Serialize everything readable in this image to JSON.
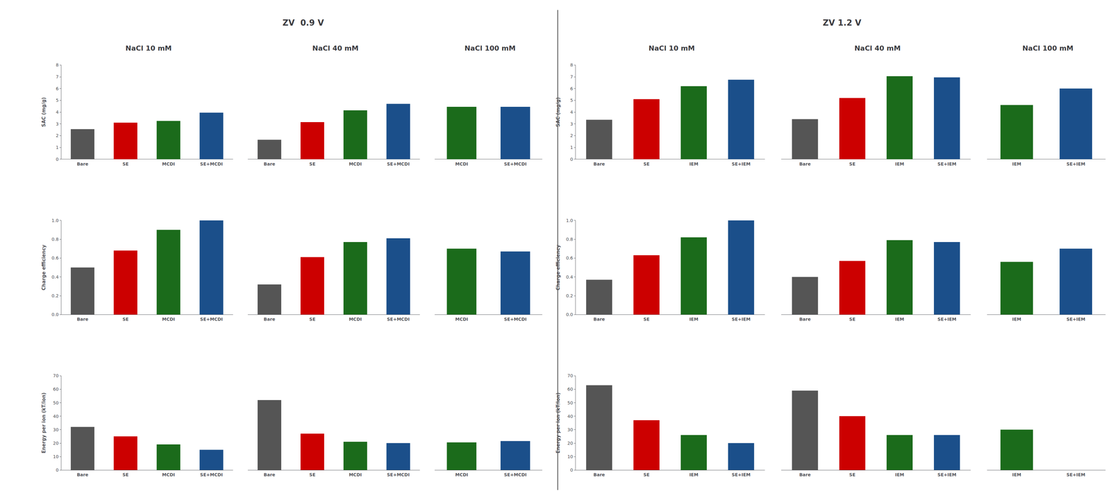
{
  "chart_data": [
    {
      "type": "bar",
      "title": "ZV  0.9 V",
      "subtitle": "NaCl 10 mM",
      "ylabel": "SAC (mg/g)",
      "categories": [
        "Bare",
        "SE",
        "MCDI",
        "SE+MCDI"
      ],
      "values": [
        2.55,
        3.1,
        3.25,
        3.95
      ],
      "colors": [
        "#555555",
        "#CC0000",
        "#1B6B1B",
        "#1B4F8A"
      ],
      "ylim": [
        0,
        8
      ],
      "yticks": [
        0,
        1,
        2,
        3,
        4,
        5,
        6,
        7,
        8
      ],
      "grid": false
    },
    {
      "type": "bar",
      "subtitle": "NaCl 40 mM",
      "categories": [
        "Bare",
        "SE",
        "MCDI",
        "SE+MCDI"
      ],
      "values": [
        1.65,
        3.15,
        4.15,
        4.7
      ],
      "colors": [
        "#555555",
        "#CC0000",
        "#1B6B1B",
        "#1B4F8A"
      ],
      "ylim": [
        0,
        8
      ],
      "yticks": [
        0,
        1,
        2,
        3,
        4,
        5,
        6,
        7,
        8
      ],
      "grid": false,
      "tick_labels": "x"
    },
    {
      "type": "bar",
      "subtitle": "NaCl 100 mM",
      "categories": [
        "MCDI",
        "SE+MCDI"
      ],
      "values": [
        4.45,
        4.45
      ],
      "colors": [
        "#1B6B1B",
        "#1B4F8A"
      ],
      "ylim": [
        0,
        8
      ],
      "yticks": [
        0,
        1,
        2,
        3,
        4,
        5,
        6,
        7,
        8
      ],
      "grid": false,
      "tick_labels": "x"
    },
    {
      "type": "bar",
      "ylabel": "Charge efficiency",
      "categories": [
        "Bare",
        "SE",
        "MCDI",
        "SE+MCDI"
      ],
      "values": [
        0.5,
        0.68,
        0.9,
        1.0
      ],
      "colors": [
        "#555555",
        "#CC0000",
        "#1B6B1B",
        "#1B4F8A"
      ],
      "ylim": [
        0,
        1.0
      ],
      "yticks": [
        {
          "value": 0.0,
          "label": "0.0"
        },
        0.2,
        0.4,
        0.6,
        0.8,
        {
          "value": 1.0,
          "label": "1.0"
        }
      ],
      "grid": false
    },
    {
      "type": "bar",
      "categories": [
        "Bare",
        "SE",
        "MCDI",
        "SE+MCDI"
      ],
      "values": [
        0.32,
        0.61,
        0.77,
        0.81
      ],
      "colors": [
        "#555555",
        "#CC0000",
        "#1B6B1B",
        "#1B4F8A"
      ],
      "ylim": [
        0,
        1.0
      ],
      "yticks": [
        {
          "value": 0.0,
          "label": "0.0"
        },
        0.2,
        0.4,
        0.6,
        0.8,
        {
          "value": 1.0,
          "label": "1.0"
        }
      ],
      "grid": false,
      "tick_labels": "x"
    },
    {
      "type": "bar",
      "categories": [
        "MCDI",
        "SE+MCDI"
      ],
      "values": [
        0.7,
        0.67
      ],
      "colors": [
        "#1B6B1B",
        "#1B4F8A"
      ],
      "ylim": [
        0,
        1.0
      ],
      "yticks": [
        {
          "value": 0.0,
          "label": "0.0"
        },
        0.2,
        0.4,
        0.6,
        0.8,
        {
          "value": 1.0,
          "label": "1.0"
        }
      ],
      "grid": false,
      "tick_labels": "x"
    },
    {
      "type": "bar",
      "ylabel": "Energy per ion (kT/ion)",
      "categories": [
        "Bare",
        "SE",
        "MCDI",
        "SE+MCDI"
      ],
      "values": [
        32,
        25,
        19,
        15
      ],
      "colors": [
        "#555555",
        "#CC0000",
        "#1B6B1B",
        "#1B4F8A"
      ],
      "ylim": [
        0,
        70
      ],
      "yticks": [
        0,
        10,
        20,
        30,
        40,
        50,
        60,
        70
      ],
      "grid": false
    },
    {
      "type": "bar",
      "categories": [
        "Bare",
        "SE",
        "MCDI",
        "SE+MCDI"
      ],
      "values": [
        52,
        27,
        21,
        20
      ],
      "colors": [
        "#555555",
        "#CC0000",
        "#1B6B1B",
        "#1B4F8A"
      ],
      "ylim": [
        0,
        70
      ],
      "yticks": [
        0,
        10,
        20,
        30,
        40,
        50,
        60,
        70
      ],
      "grid": false,
      "tick_labels": "x"
    },
    {
      "type": "bar",
      "categories": [
        "MCDI",
        "SE+MCDI"
      ],
      "values": [
        20.5,
        21.5
      ],
      "colors": [
        "#1B6B1B",
        "#1B4F8A"
      ],
      "ylim": [
        0,
        70
      ],
      "yticks": [
        0,
        10,
        20,
        30,
        40,
        50,
        60,
        70
      ],
      "grid": false,
      "tick_labels": "x"
    },
    {
      "type": "bar",
      "title": "ZV 1.2 V",
      "subtitle": "NaCl 10 mM",
      "ylabel": "SAC (mg/g)",
      "categories": [
        "Bare",
        "SE",
        "IEM",
        "SE+IEM"
      ],
      "values": [
        3.35,
        5.1,
        6.2,
        6.75
      ],
      "colors": [
        "#555555",
        "#CC0000",
        "#1B6B1B",
        "#1B4F8A"
      ],
      "ylim": [
        0,
        8
      ],
      "yticks": [
        0,
        1,
        2,
        3,
        4,
        5,
        6,
        7,
        8
      ],
      "grid": false
    },
    {
      "type": "bar",
      "subtitle": "NaCl 40 mM",
      "categories": [
        "Bare",
        "SE",
        "IEM",
        "SE+IEM"
      ],
      "values": [
        3.4,
        5.2,
        7.05,
        6.95
      ],
      "colors": [
        "#555555",
        "#CC0000",
        "#1B6B1B",
        "#1B4F8A"
      ],
      "ylim": [
        0,
        8
      ],
      "yticks": [
        0,
        1,
        2,
        3,
        4,
        5,
        6,
        7,
        8
      ],
      "grid": false,
      "tick_labels": "x"
    },
    {
      "type": "bar",
      "subtitle": "NaCl 100 mM",
      "categories": [
        "IEM",
        "SE+IEM"
      ],
      "values": [
        4.6,
        6.0
      ],
      "colors": [
        "#1B6B1B",
        "#1B4F8A"
      ],
      "ylim": [
        0,
        8
      ],
      "yticks": [
        0,
        1,
        2,
        3,
        4,
        5,
        6,
        7,
        8
      ],
      "grid": false,
      "tick_labels": "x"
    },
    {
      "type": "bar",
      "ylabel": "Charge efficiency",
      "categories": [
        "Bare",
        "SE",
        "IEM",
        "SE+IEM"
      ],
      "values": [
        0.37,
        0.63,
        0.82,
        1.0
      ],
      "colors": [
        "#555555",
        "#CC0000",
        "#1B6B1B",
        "#1B4F8A"
      ],
      "ylim": [
        0,
        1.0
      ],
      "yticks": [
        {
          "value": 0.0,
          "label": "0.0"
        },
        0.2,
        0.4,
        0.6,
        0.8,
        {
          "value": 1.0,
          "label": "1.0"
        }
      ],
      "grid": false
    },
    {
      "type": "bar",
      "categories": [
        "Bare",
        "SE",
        "IEM",
        "SE+IEM"
      ],
      "values": [
        0.4,
        0.57,
        0.79,
        0.77
      ],
      "colors": [
        "#555555",
        "#CC0000",
        "#1B6B1B",
        "#1B4F8A"
      ],
      "ylim": [
        0,
        1.0
      ],
      "yticks": [
        {
          "value": 0.0,
          "label": "0.0"
        },
        0.2,
        0.4,
        0.6,
        0.8,
        {
          "value": 1.0,
          "label": "1.0"
        }
      ],
      "grid": false,
      "tick_labels": "x"
    },
    {
      "type": "bar",
      "categories": [
        "IEM",
        "SE+IEM"
      ],
      "values": [
        0.56,
        0.7
      ],
      "colors": [
        "#1B6B1B",
        "#1B4F8A"
      ],
      "ylim": [
        0,
        1.0
      ],
      "yticks": [
        {
          "value": 0.0,
          "label": "0.0"
        },
        0.2,
        0.4,
        0.6,
        0.8,
        {
          "value": 1.0,
          "label": "1.0"
        }
      ],
      "grid": false,
      "tick_labels": "x"
    },
    {
      "type": "bar",
      "ylabel": "Energy per ion (kT/ion)",
      "categories": [
        "Bare",
        "SE",
        "IEM",
        "SE+IEM"
      ],
      "values": [
        63,
        37,
        26,
        20
      ],
      "colors": [
        "#555555",
        "#CC0000",
        "#1B6B1B",
        "#1B4F8A"
      ],
      "ylim": [
        0,
        70
      ],
      "yticks": [
        0,
        10,
        20,
        30,
        40,
        50,
        60,
        70
      ],
      "grid": false
    },
    {
      "type": "bar",
      "categories": [
        "Bare",
        "SE",
        "IEM",
        "SE+IEM"
      ],
      "values": [
        59,
        40,
        26,
        26
      ],
      "colors": [
        "#555555",
        "#CC0000",
        "#1B6B1B",
        "#1B4F8A"
      ],
      "ylim": [
        0,
        70
      ],
      "yticks": [
        0,
        10,
        20,
        30,
        40,
        50,
        60,
        70
      ],
      "grid": false,
      "tick_labels": "x"
    },
    {
      "type": "bar",
      "categories": [
        "IEM",
        "SE+IEM"
      ],
      "values": [
        30,
        0
      ],
      "colors": [
        "#1B6B1B",
        "#1B4F8A"
      ],
      "ylim": [
        0,
        70
      ],
      "yticks": [
        0,
        10,
        20,
        30,
        40,
        50,
        60,
        70
      ],
      "grid": false,
      "tick_labels": "x"
    }
  ]
}
